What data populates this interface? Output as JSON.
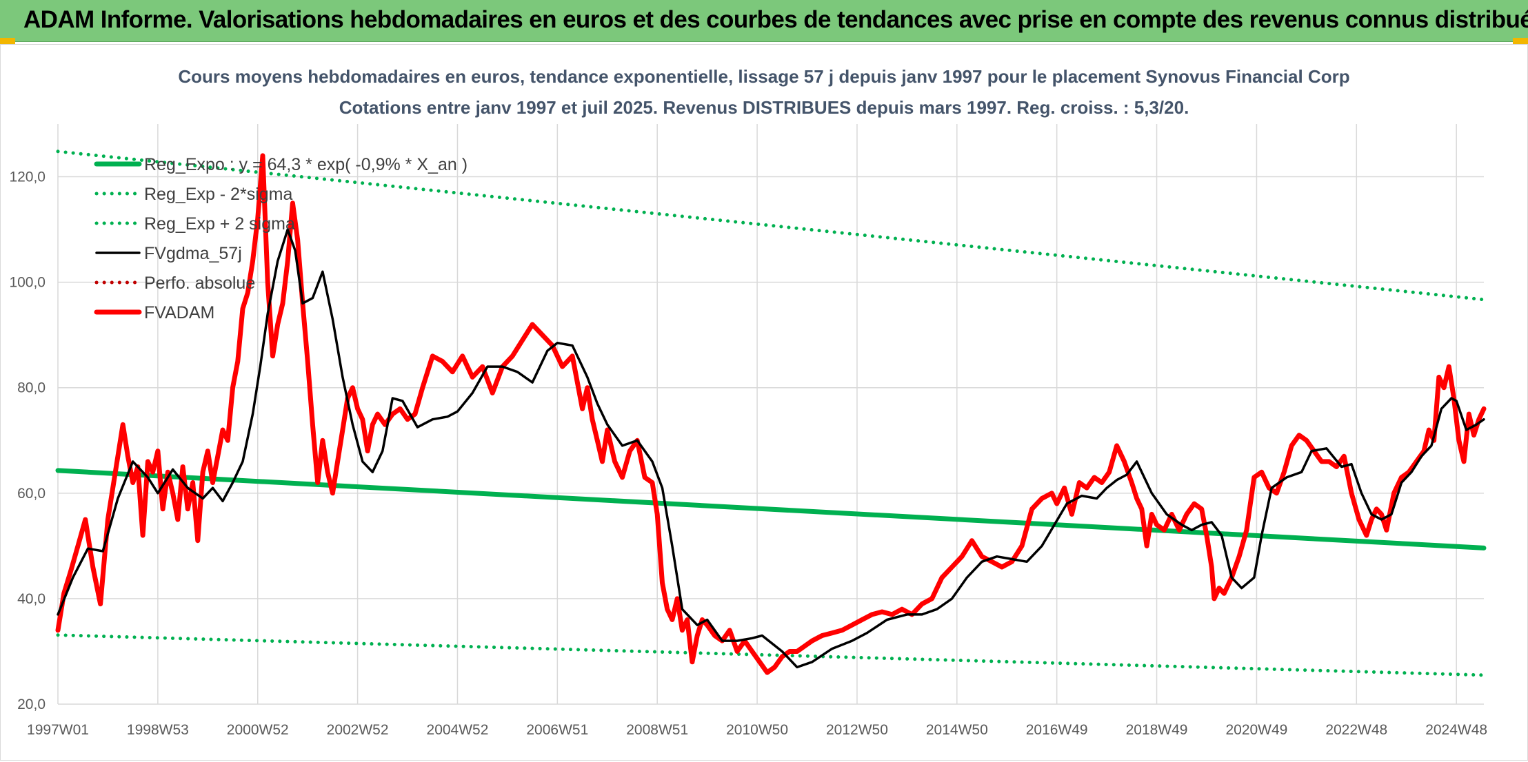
{
  "banner": {
    "title": "ADAM Informe. Valorisations hebdomadaires en euros et des courbes de tendances avec prise en compte des revenus connus distribués"
  },
  "colors": {
    "banner_bg": "#7cc87b",
    "reg_expo": "#00b050",
    "fvgdma": "#000000",
    "fvadam": "#ff0000",
    "perfo": "#c00000",
    "grid": "#d9d9d9",
    "title": "#44546a"
  },
  "chart_data": {
    "type": "line",
    "title": "Cours moyens hebdomadaires en euros, tendance exponentielle, lissage 57 j depuis janv 1997 pour le placement Synovus Financial Corp",
    "subtitle": "Cotations entre janv 1997 et juil 2025. Revenus DISTRIBUES depuis mars 1997. Reg. croiss. : 5,3/20.",
    "xlabel": "",
    "ylabel": "",
    "ylim": [
      20,
      130
    ],
    "yticks": [
      "20,0",
      "40,0",
      "60,0",
      "80,0",
      "100,0",
      "120,0"
    ],
    "ytick_values": [
      20,
      40,
      60,
      80,
      100,
      120
    ],
    "xlim": [
      1997.0,
      2025.55
    ],
    "xticks": [
      "1997W01",
      "1998W53",
      "2000W52",
      "2002W52",
      "2004W52",
      "2006W51",
      "2008W51",
      "2010W50",
      "2012W50",
      "2014W50",
      "2016W49",
      "2018W49",
      "2020W49",
      "2022W48",
      "2024W48"
    ],
    "xtick_values": [
      1997.0,
      1999.0,
      2001.0,
      2003.0,
      2005.0,
      2007.0,
      2009.0,
      2011.0,
      2013.0,
      2015.0,
      2017.0,
      2019.0,
      2021.0,
      2023.0,
      2025.0
    ],
    "grid": true,
    "legend_position": "top-left",
    "series": [
      {
        "name": "Reg_Expo : y = 64,3 * exp( -0,9% * X_an )",
        "style": "solid-thick",
        "color": "#00b050",
        "x": [
          1997.0,
          2025.55
        ],
        "y": [
          64.3,
          49.6
        ]
      },
      {
        "name": "Reg_Exp - 2*sigma",
        "style": "dotted",
        "color": "#00b050",
        "x": [
          1997.0,
          2025.55
        ],
        "y": [
          33.1,
          25.5
        ]
      },
      {
        "name": "Reg_Exp + 2 sigma",
        "style": "dotted",
        "color": "#00b050",
        "x": [
          1997.0,
          2025.55
        ],
        "y": [
          124.8,
          96.7
        ]
      },
      {
        "name": "FVgdma_57j",
        "style": "solid",
        "color": "#000000",
        "x": [
          1997.0,
          1997.3,
          1997.6,
          1997.9,
          1998.2,
          1998.5,
          1998.8,
          1999.0,
          1999.3,
          1999.6,
          1999.9,
          2000.1,
          2000.3,
          2000.5,
          2000.7,
          2000.9,
          2001.05,
          2001.2,
          2001.4,
          2001.6,
          2001.75,
          2001.9,
          2002.1,
          2002.3,
          2002.5,
          2002.7,
          2002.9,
          2003.1,
          2003.3,
          2003.5,
          2003.7,
          2003.9,
          2004.2,
          2004.5,
          2004.8,
          2005.0,
          2005.3,
          2005.6,
          2005.9,
          2006.2,
          2006.5,
          2006.8,
          2007.0,
          2007.3,
          2007.6,
          2007.8,
          2008.0,
          2008.3,
          2008.6,
          2008.9,
          2009.1,
          2009.3,
          2009.5,
          2009.8,
          2010.0,
          2010.3,
          2010.6,
          2010.9,
          2011.1,
          2011.3,
          2011.5,
          2011.8,
          2012.1,
          2012.5,
          2012.9,
          2013.2,
          2013.6,
          2014.0,
          2014.3,
          2014.6,
          2014.9,
          2015.2,
          2015.5,
          2015.8,
          2016.1,
          2016.4,
          2016.7,
          2016.95,
          2017.2,
          2017.5,
          2017.8,
          2018.0,
          2018.2,
          2018.4,
          2018.6,
          2018.9,
          2019.2,
          2019.5,
          2019.7,
          2019.9,
          2020.1,
          2020.3,
          2020.5,
          2020.7,
          2020.95,
          2021.1,
          2021.3,
          2021.6,
          2021.9,
          2022.1,
          2022.4,
          2022.7,
          2022.9,
          2023.1,
          2023.3,
          2023.5,
          2023.7,
          2023.9,
          2024.1,
          2024.3,
          2024.5,
          2024.7,
          2024.9,
          2025.0,
          2025.2,
          2025.4,
          2025.55
        ],
        "y": [
          37.0,
          44.0,
          49.5,
          49.0,
          59.0,
          66.0,
          63.0,
          60.0,
          64.5,
          61.0,
          59.0,
          61.0,
          58.5,
          62.0,
          66.0,
          75.0,
          84.0,
          94.0,
          104.0,
          110.0,
          106.0,
          96.0,
          97.0,
          102.0,
          93.0,
          82.0,
          73.0,
          66.0,
          64.0,
          68.0,
          78.0,
          77.5,
          72.5,
          74.0,
          74.5,
          75.5,
          79.0,
          84.0,
          84.0,
          83.0,
          81.0,
          87.0,
          88.5,
          88.0,
          82.0,
          77.0,
          73.0,
          69.0,
          70.0,
          66.0,
          61.0,
          50.0,
          38.0,
          35.0,
          36.0,
          32.0,
          32.0,
          32.5,
          33.0,
          31.5,
          30.0,
          27.0,
          28.0,
          30.5,
          32.0,
          33.5,
          36.0,
          37.0,
          37.0,
          38.0,
          40.0,
          44.0,
          47.0,
          48.0,
          47.5,
          47.0,
          50.0,
          54.0,
          58.0,
          59.5,
          59.0,
          61.0,
          62.5,
          63.5,
          66.0,
          60.0,
          56.0,
          54.0,
          53.0,
          54.0,
          54.5,
          52.0,
          44.0,
          42.0,
          44.0,
          52.0,
          61.0,
          63.0,
          64.0,
          68.0,
          68.5,
          65.0,
          65.5,
          60.0,
          56.0,
          55.0,
          56.0,
          62.0,
          64.0,
          67.0,
          69.0,
          76.0,
          78.0,
          77.5,
          72.0,
          73.0,
          74.0
        ]
      },
      {
        "name": "Perfo. absolue",
        "style": "dotted",
        "color": "#c00000",
        "x": [],
        "y": []
      },
      {
        "name": "FVADAM",
        "style": "solid-thick",
        "color": "#ff0000",
        "x": [
          1997.0,
          1997.12,
          1997.25,
          1997.4,
          1997.55,
          1997.7,
          1997.85,
          1998.0,
          1998.15,
          1998.3,
          1998.4,
          1998.5,
          1998.6,
          1998.7,
          1998.8,
          1998.9,
          1999.0,
          1999.1,
          1999.2,
          1999.3,
          1999.4,
          1999.5,
          1999.6,
          1999.7,
          1999.8,
          1999.9,
          2000.0,
          2000.1,
          2000.2,
          2000.3,
          2000.4,
          2000.5,
          2000.6,
          2000.7,
          2000.8,
          2000.9,
          2001.0,
          2001.1,
          2001.2,
          2001.3,
          2001.4,
          2001.5,
          2001.6,
          2001.7,
          2001.8,
          2001.9,
          2002.0,
          2002.1,
          2002.2,
          2002.3,
          2002.4,
          2002.5,
          2002.6,
          2002.7,
          2002.8,
          2002.9,
          2003.0,
          2003.1,
          2003.2,
          2003.3,
          2003.4,
          2003.55,
          2003.7,
          2003.85,
          2004.0,
          2004.15,
          2004.3,
          2004.5,
          2004.7,
          2004.9,
          2005.1,
          2005.3,
          2005.5,
          2005.7,
          2005.9,
          2006.1,
          2006.3,
          2006.5,
          2006.7,
          2006.9,
          2007.1,
          2007.3,
          2007.5,
          2007.6,
          2007.7,
          2007.8,
          2007.9,
          2008.0,
          2008.15,
          2008.3,
          2008.45,
          2008.6,
          2008.75,
          2008.9,
          2009.0,
          2009.1,
          2009.2,
          2009.3,
          2009.4,
          2009.5,
          2009.6,
          2009.7,
          2009.8,
          2009.9,
          2010.0,
          2010.15,
          2010.3,
          2010.45,
          2010.6,
          2010.75,
          2010.9,
          2011.05,
          2011.2,
          2011.35,
          2011.5,
          2011.65,
          2011.8,
          2011.95,
          2012.1,
          2012.3,
          2012.5,
          2012.7,
          2012.9,
          2013.1,
          2013.3,
          2013.5,
          2013.7,
          2013.9,
          2014.1,
          2014.3,
          2014.5,
          2014.7,
          2014.9,
          2015.1,
          2015.3,
          2015.5,
          2015.7,
          2015.9,
          2016.1,
          2016.3,
          2016.5,
          2016.7,
          2016.9,
          2017.0,
          2017.15,
          2017.3,
          2017.45,
          2017.6,
          2017.75,
          2017.9,
          2018.05,
          2018.2,
          2018.35,
          2018.5,
          2018.6,
          2018.7,
          2018.8,
          2018.9,
          2019.0,
          2019.15,
          2019.3,
          2019.45,
          2019.6,
          2019.75,
          2019.9,
          2020.0,
          2020.1,
          2020.15,
          2020.25,
          2020.35,
          2020.5,
          2020.65,
          2020.8,
          2020.95,
          2021.1,
          2021.25,
          2021.4,
          2021.55,
          2021.7,
          2021.85,
          2022.0,
          2022.15,
          2022.3,
          2022.45,
          2022.6,
          2022.75,
          2022.9,
          2023.05,
          2023.2,
          2023.3,
          2023.4,
          2023.5,
          2023.6,
          2023.75,
          2023.9,
          2024.05,
          2024.2,
          2024.35,
          2024.45,
          2024.55,
          2024.65,
          2024.75,
          2024.85,
          2024.95,
          2025.05,
          2025.15,
          2025.25,
          2025.35,
          2025.45,
          2025.55
        ],
        "y": [
          34.0,
          41.0,
          45.0,
          50.0,
          55.0,
          46.0,
          39.0,
          55.0,
          64.0,
          73.0,
          67.0,
          62.0,
          65.0,
          52.0,
          66.0,
          64.0,
          68.0,
          57.0,
          64.0,
          60.0,
          55.0,
          65.0,
          57.0,
          62.0,
          51.0,
          64.0,
          68.0,
          62.0,
          67.0,
          72.0,
          70.0,
          80.0,
          85.0,
          95.0,
          98.0,
          104.0,
          112.0,
          124.0,
          100.0,
          86.0,
          92.0,
          96.0,
          104.0,
          115.0,
          108.0,
          96.0,
          85.0,
          73.0,
          62.0,
          70.0,
          64.0,
          60.0,
          66.0,
          72.0,
          78.0,
          80.0,
          76.0,
          74.0,
          68.0,
          73.0,
          75.0,
          73.0,
          75.0,
          76.0,
          74.0,
          75.0,
          80.0,
          86.0,
          85.0,
          83.0,
          86.0,
          82.0,
          84.0,
          79.0,
          84.0,
          86.0,
          89.0,
          92.0,
          90.0,
          88.0,
          84.0,
          86.0,
          76.0,
          80.0,
          74.0,
          70.0,
          66.0,
          72.0,
          66.0,
          63.0,
          68.0,
          70.0,
          63.0,
          62.0,
          56.0,
          43.0,
          38.0,
          36.0,
          40.0,
          34.0,
          36.0,
          28.0,
          33.0,
          36.0,
          35.0,
          33.0,
          32.0,
          34.0,
          30.0,
          32.0,
          30.0,
          28.0,
          26.0,
          27.0,
          29.0,
          30.0,
          30.0,
          31.0,
          32.0,
          33.0,
          33.5,
          34.0,
          35.0,
          36.0,
          37.0,
          37.5,
          37.0,
          38.0,
          37.0,
          39.0,
          40.0,
          44.0,
          46.0,
          48.0,
          51.0,
          48.0,
          47.0,
          46.0,
          47.0,
          50.0,
          57.0,
          59.0,
          60.0,
          58.0,
          61.0,
          56.0,
          62.0,
          61.0,
          63.0,
          62.0,
          64.0,
          69.0,
          66.0,
          62.0,
          59.0,
          57.0,
          50.0,
          56.0,
          54.0,
          53.0,
          56.0,
          53.0,
          56.0,
          58.0,
          57.0,
          52.0,
          46.0,
          40.0,
          42.0,
          41.0,
          44.0,
          48.0,
          53.0,
          63.0,
          64.0,
          61.0,
          60.0,
          64.0,
          69.0,
          71.0,
          70.0,
          68.0,
          66.0,
          66.0,
          65.0,
          67.0,
          60.0,
          55.0,
          52.0,
          55.0,
          57.0,
          56.0,
          53.0,
          60.0,
          63.0,
          64.0,
          66.0,
          68.0,
          72.0,
          70.0,
          82.0,
          80.0,
          84.0,
          78.0,
          70.0,
          66.0,
          75.0,
          71.0,
          74.0,
          76.0
        ]
      }
    ]
  }
}
